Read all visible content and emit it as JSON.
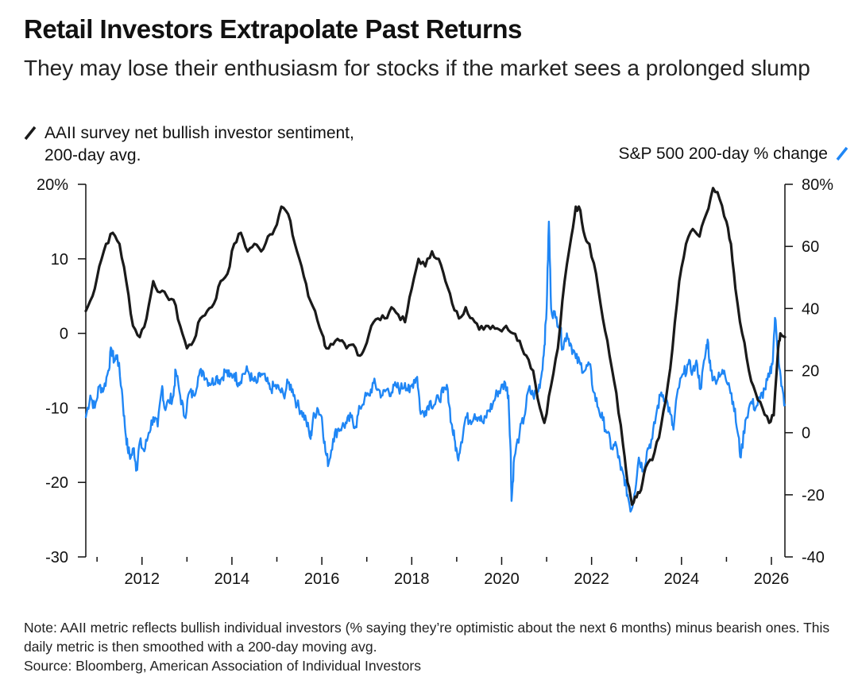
{
  "title": "Retail Investors Extrapolate Past Returns",
  "subtitle": "They may lose their enthusiasm for stocks if the market sees a prolonged slump",
  "note": "Note: AAII metric reflects bullish individual investors (% saying they’re optimistic about the next 6 months) minus bearish ones. This daily metric is then smoothed with a 200-day moving avg.",
  "source": "Source: Bloomberg, American Association of Individual Investors",
  "colors": {
    "aaii": "#1a1a1a",
    "sp500": "#1f86f5",
    "axis": "#111111"
  },
  "chart_data": {
    "type": "line",
    "x_range": [
      2010.75,
      2026.3
    ],
    "x_ticks": [
      2012,
      2014,
      2016,
      2018,
      2020,
      2022,
      2024,
      2026
    ],
    "x_minor_ticks": [
      2011,
      2013,
      2015,
      2017,
      2019,
      2021,
      2023,
      2025
    ],
    "left_axis": {
      "range": [
        -30,
        20
      ],
      "ticks": [
        20,
        10,
        0,
        -10,
        -20,
        -30
      ],
      "tick_labels": [
        "20%",
        "10",
        "0",
        "-10",
        "-20",
        "-30"
      ]
    },
    "right_axis": {
      "range": [
        -40,
        80
      ],
      "ticks": [
        80,
        60,
        40,
        20,
        0,
        -20,
        -40
      ],
      "tick_labels": [
        "80%",
        "60",
        "40",
        "20",
        "0",
        "-20",
        "-40"
      ]
    },
    "series": [
      {
        "name": "AAII survey net bullish investor sentiment, 200-day avg.",
        "axis": "left",
        "color": "#1a1a1a",
        "points": [
          [
            2010.75,
            3
          ],
          [
            2010.9,
            5
          ],
          [
            2011.05,
            9
          ],
          [
            2011.2,
            12
          ],
          [
            2011.35,
            13.5
          ],
          [
            2011.5,
            12
          ],
          [
            2011.65,
            7
          ],
          [
            2011.8,
            1
          ],
          [
            2011.95,
            -0.5
          ],
          [
            2012.1,
            2
          ],
          [
            2012.25,
            7
          ],
          [
            2012.4,
            5.5
          ],
          [
            2012.55,
            5
          ],
          [
            2012.7,
            4.5
          ],
          [
            2012.85,
            1
          ],
          [
            2013.0,
            -2
          ],
          [
            2013.15,
            -1
          ],
          [
            2013.3,
            2
          ],
          [
            2013.45,
            3
          ],
          [
            2013.6,
            4
          ],
          [
            2013.75,
            7
          ],
          [
            2013.9,
            8
          ],
          [
            2014.05,
            12
          ],
          [
            2014.2,
            13.5
          ],
          [
            2014.35,
            11
          ],
          [
            2014.5,
            12
          ],
          [
            2014.65,
            11
          ],
          [
            2014.8,
            13
          ],
          [
            2014.95,
            14
          ],
          [
            2015.1,
            17
          ],
          [
            2015.25,
            16
          ],
          [
            2015.4,
            12
          ],
          [
            2015.55,
            9
          ],
          [
            2015.7,
            5
          ],
          [
            2015.85,
            3
          ],
          [
            2016.0,
            0
          ],
          [
            2016.1,
            -2
          ],
          [
            2016.25,
            -1.5
          ],
          [
            2016.4,
            -1
          ],
          [
            2016.55,
            -2
          ],
          [
            2016.7,
            -1.5
          ],
          [
            2016.85,
            -3
          ],
          [
            2016.95,
            -2
          ],
          [
            2017.1,
            1
          ],
          [
            2017.25,
            2
          ],
          [
            2017.4,
            2
          ],
          [
            2017.55,
            3.5
          ],
          [
            2017.7,
            2.5
          ],
          [
            2017.85,
            1.5
          ],
          [
            2018.0,
            6
          ],
          [
            2018.15,
            10
          ],
          [
            2018.3,
            9
          ],
          [
            2018.45,
            11
          ],
          [
            2018.6,
            10
          ],
          [
            2018.75,
            7
          ],
          [
            2018.9,
            4
          ],
          [
            2019.05,
            2
          ],
          [
            2019.2,
            3.5
          ],
          [
            2019.35,
            2
          ],
          [
            2019.5,
            0.5
          ],
          [
            2019.65,
            1
          ],
          [
            2019.8,
            1
          ],
          [
            2019.95,
            0.5
          ],
          [
            2020.1,
            1
          ],
          [
            2020.25,
            0
          ],
          [
            2020.4,
            -1
          ],
          [
            2020.55,
            -3
          ],
          [
            2020.7,
            -5
          ],
          [
            2020.85,
            -10
          ],
          [
            2020.95,
            -12
          ],
          [
            2021.1,
            -7
          ],
          [
            2021.25,
            -2
          ],
          [
            2021.4,
            7
          ],
          [
            2021.55,
            13
          ],
          [
            2021.65,
            17
          ],
          [
            2021.75,
            16.5
          ],
          [
            2021.85,
            13
          ],
          [
            2021.95,
            12
          ],
          [
            2022.1,
            8
          ],
          [
            2022.25,
            2
          ],
          [
            2022.4,
            -3
          ],
          [
            2022.55,
            -8
          ],
          [
            2022.7,
            -15
          ],
          [
            2022.8,
            -20
          ],
          [
            2022.9,
            -23
          ],
          [
            2023.0,
            -22
          ],
          [
            2023.1,
            -21
          ],
          [
            2023.2,
            -18
          ],
          [
            2023.35,
            -17
          ],
          [
            2023.5,
            -14
          ],
          [
            2023.65,
            -9
          ],
          [
            2023.8,
            -2
          ],
          [
            2023.95,
            7
          ],
          [
            2024.1,
            12
          ],
          [
            2024.25,
            14
          ],
          [
            2024.4,
            13
          ],
          [
            2024.55,
            16
          ],
          [
            2024.7,
            19.5
          ],
          [
            2024.85,
            18
          ],
          [
            2025.0,
            15
          ],
          [
            2025.1,
            12
          ],
          [
            2025.2,
            6
          ],
          [
            2025.35,
            0
          ],
          [
            2025.5,
            -5
          ],
          [
            2025.65,
            -8
          ],
          [
            2025.8,
            -10
          ],
          [
            2025.95,
            -12
          ],
          [
            2026.05,
            -11
          ],
          [
            2026.15,
            -2
          ],
          [
            2026.2,
            0
          ],
          [
            2026.3,
            -0.5
          ]
        ]
      },
      {
        "name": "S&P 500 200-day % change",
        "axis": "right",
        "color": "#1f86f5",
        "points": [
          [
            2010.75,
            5
          ],
          [
            2010.85,
            12
          ],
          [
            2010.95,
            8
          ],
          [
            2011.05,
            15
          ],
          [
            2011.15,
            14
          ],
          [
            2011.25,
            20
          ],
          [
            2011.32,
            27
          ],
          [
            2011.38,
            23
          ],
          [
            2011.45,
            25
          ],
          [
            2011.55,
            14
          ],
          [
            2011.62,
            2
          ],
          [
            2011.68,
            -5
          ],
          [
            2011.75,
            -8
          ],
          [
            2011.82,
            -5
          ],
          [
            2011.88,
            -12
          ],
          [
            2011.95,
            -3
          ],
          [
            2012.05,
            -6
          ],
          [
            2012.15,
            0
          ],
          [
            2012.25,
            5
          ],
          [
            2012.35,
            2
          ],
          [
            2012.45,
            15
          ],
          [
            2012.5,
            8
          ],
          [
            2012.6,
            10
          ],
          [
            2012.7,
            12
          ],
          [
            2012.75,
            20
          ],
          [
            2012.85,
            12
          ],
          [
            2012.95,
            5
          ],
          [
            2013.05,
            13
          ],
          [
            2013.15,
            12
          ],
          [
            2013.25,
            18
          ],
          [
            2013.35,
            20
          ],
          [
            2013.45,
            17
          ],
          [
            2013.55,
            16
          ],
          [
            2013.65,
            18
          ],
          [
            2013.75,
            17
          ],
          [
            2013.85,
            20
          ],
          [
            2013.95,
            18
          ],
          [
            2014.05,
            19
          ],
          [
            2014.15,
            16
          ],
          [
            2014.25,
            19
          ],
          [
            2014.35,
            20
          ],
          [
            2014.45,
            17
          ],
          [
            2014.55,
            16
          ],
          [
            2014.65,
            19
          ],
          [
            2014.75,
            17
          ],
          [
            2014.85,
            14
          ],
          [
            2014.95,
            15
          ],
          [
            2015.05,
            14
          ],
          [
            2015.15,
            12
          ],
          [
            2015.25,
            16
          ],
          [
            2015.35,
            14
          ],
          [
            2015.45,
            9
          ],
          [
            2015.55,
            7
          ],
          [
            2015.65,
            4
          ],
          [
            2015.75,
            -2
          ],
          [
            2015.8,
            4
          ],
          [
            2015.9,
            8
          ],
          [
            2016.0,
            5
          ],
          [
            2016.08,
            -6
          ],
          [
            2016.15,
            -10
          ],
          [
            2016.25,
            -2
          ],
          [
            2016.35,
            1
          ],
          [
            2016.45,
            2
          ],
          [
            2016.55,
            3
          ],
          [
            2016.65,
            5
          ],
          [
            2016.75,
            2
          ],
          [
            2016.85,
            8
          ],
          [
            2016.95,
            11
          ],
          [
            2017.05,
            12
          ],
          [
            2017.15,
            16
          ],
          [
            2017.25,
            14
          ],
          [
            2017.35,
            12
          ],
          [
            2017.45,
            14
          ],
          [
            2017.55,
            13
          ],
          [
            2017.65,
            15
          ],
          [
            2017.75,
            14
          ],
          [
            2017.85,
            16
          ],
          [
            2017.95,
            13
          ],
          [
            2018.05,
            17
          ],
          [
            2018.12,
            18
          ],
          [
            2018.2,
            6
          ],
          [
            2018.3,
            7
          ],
          [
            2018.4,
            10
          ],
          [
            2018.5,
            9
          ],
          [
            2018.6,
            11
          ],
          [
            2018.7,
            13
          ],
          [
            2018.8,
            14
          ],
          [
            2018.88,
            3
          ],
          [
            2018.95,
            -2
          ],
          [
            2019.02,
            -8
          ],
          [
            2019.1,
            -3
          ],
          [
            2019.2,
            5
          ],
          [
            2019.3,
            4
          ],
          [
            2019.4,
            6
          ],
          [
            2019.5,
            5
          ],
          [
            2019.6,
            3
          ],
          [
            2019.7,
            7
          ],
          [
            2019.8,
            9
          ],
          [
            2019.9,
            13
          ],
          [
            2019.98,
            14
          ],
          [
            2020.08,
            16
          ],
          [
            2020.15,
            12
          ],
          [
            2020.2,
            -6
          ],
          [
            2020.22,
            -22
          ],
          [
            2020.28,
            -8
          ],
          [
            2020.4,
            0
          ],
          [
            2020.5,
            5
          ],
          [
            2020.6,
            14
          ],
          [
            2020.7,
            12
          ],
          [
            2020.8,
            13
          ],
          [
            2020.88,
            18
          ],
          [
            2020.95,
            28
          ],
          [
            2021.0,
            40
          ],
          [
            2021.05,
            68
          ],
          [
            2021.1,
            40
          ],
          [
            2021.2,
            37
          ],
          [
            2021.3,
            35
          ],
          [
            2021.35,
            27
          ],
          [
            2021.45,
            32
          ],
          [
            2021.55,
            28
          ],
          [
            2021.65,
            24
          ],
          [
            2021.75,
            22
          ],
          [
            2021.85,
            20
          ],
          [
            2021.95,
            22
          ],
          [
            2022.05,
            13
          ],
          [
            2022.15,
            8
          ],
          [
            2022.25,
            4
          ],
          [
            2022.35,
            0
          ],
          [
            2022.45,
            -5
          ],
          [
            2022.55,
            -4
          ],
          [
            2022.65,
            -12
          ],
          [
            2022.72,
            -14
          ],
          [
            2022.8,
            -20
          ],
          [
            2022.88,
            -25
          ],
          [
            2022.95,
            -20
          ],
          [
            2023.05,
            -8
          ],
          [
            2023.15,
            -12
          ],
          [
            2023.25,
            -5
          ],
          [
            2023.35,
            -2
          ],
          [
            2023.45,
            7
          ],
          [
            2023.55,
            13
          ],
          [
            2023.65,
            11
          ],
          [
            2023.75,
            6
          ],
          [
            2023.82,
            1
          ],
          [
            2023.92,
            14
          ],
          [
            2024.05,
            19
          ],
          [
            2024.15,
            22
          ],
          [
            2024.25,
            20
          ],
          [
            2024.35,
            22
          ],
          [
            2024.42,
            14
          ],
          [
            2024.52,
            24
          ],
          [
            2024.58,
            30
          ],
          [
            2024.65,
            20
          ],
          [
            2024.75,
            17
          ],
          [
            2024.85,
            18
          ],
          [
            2024.95,
            20
          ],
          [
            2025.05,
            16
          ],
          [
            2025.15,
            10
          ],
          [
            2025.25,
            0
          ],
          [
            2025.32,
            -8
          ],
          [
            2025.42,
            4
          ],
          [
            2025.55,
            10
          ],
          [
            2025.65,
            8
          ],
          [
            2025.75,
            11
          ],
          [
            2025.85,
            14
          ],
          [
            2025.95,
            18
          ],
          [
            2026.02,
            22
          ],
          [
            2026.08,
            37
          ],
          [
            2026.15,
            26
          ],
          [
            2026.22,
            15
          ],
          [
            2026.3,
            9
          ]
        ]
      }
    ]
  },
  "legend": {
    "left_label_line1": "AAII survey net bullish investor sentiment,",
    "left_label_line2": "200-day avg.",
    "right_label": "S&P 500 200-day % change"
  }
}
